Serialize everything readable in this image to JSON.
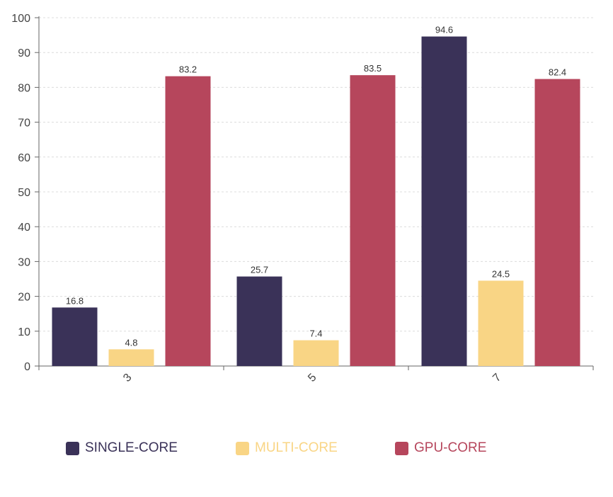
{
  "chart_data": {
    "type": "bar",
    "title": "",
    "xlabel": "",
    "ylabel": "",
    "categories": [
      "3",
      "5",
      "7"
    ],
    "ylim": [
      0,
      100
    ],
    "yticks": [
      0,
      10,
      20,
      30,
      40,
      50,
      60,
      70,
      80,
      90,
      100
    ],
    "grid": true,
    "legend_position": "bottom",
    "series": [
      {
        "name": "SINGLE-CORE",
        "color": "#3a3258",
        "values": [
          16.8,
          25.7,
          94.6
        ]
      },
      {
        "name": "MULTI-CORE",
        "color": "#f9d585",
        "values": [
          4.8,
          7.4,
          24.5
        ]
      },
      {
        "name": "GPU-CORE",
        "color": "#b6465c",
        "values": [
          83.2,
          83.5,
          82.4
        ]
      }
    ]
  }
}
